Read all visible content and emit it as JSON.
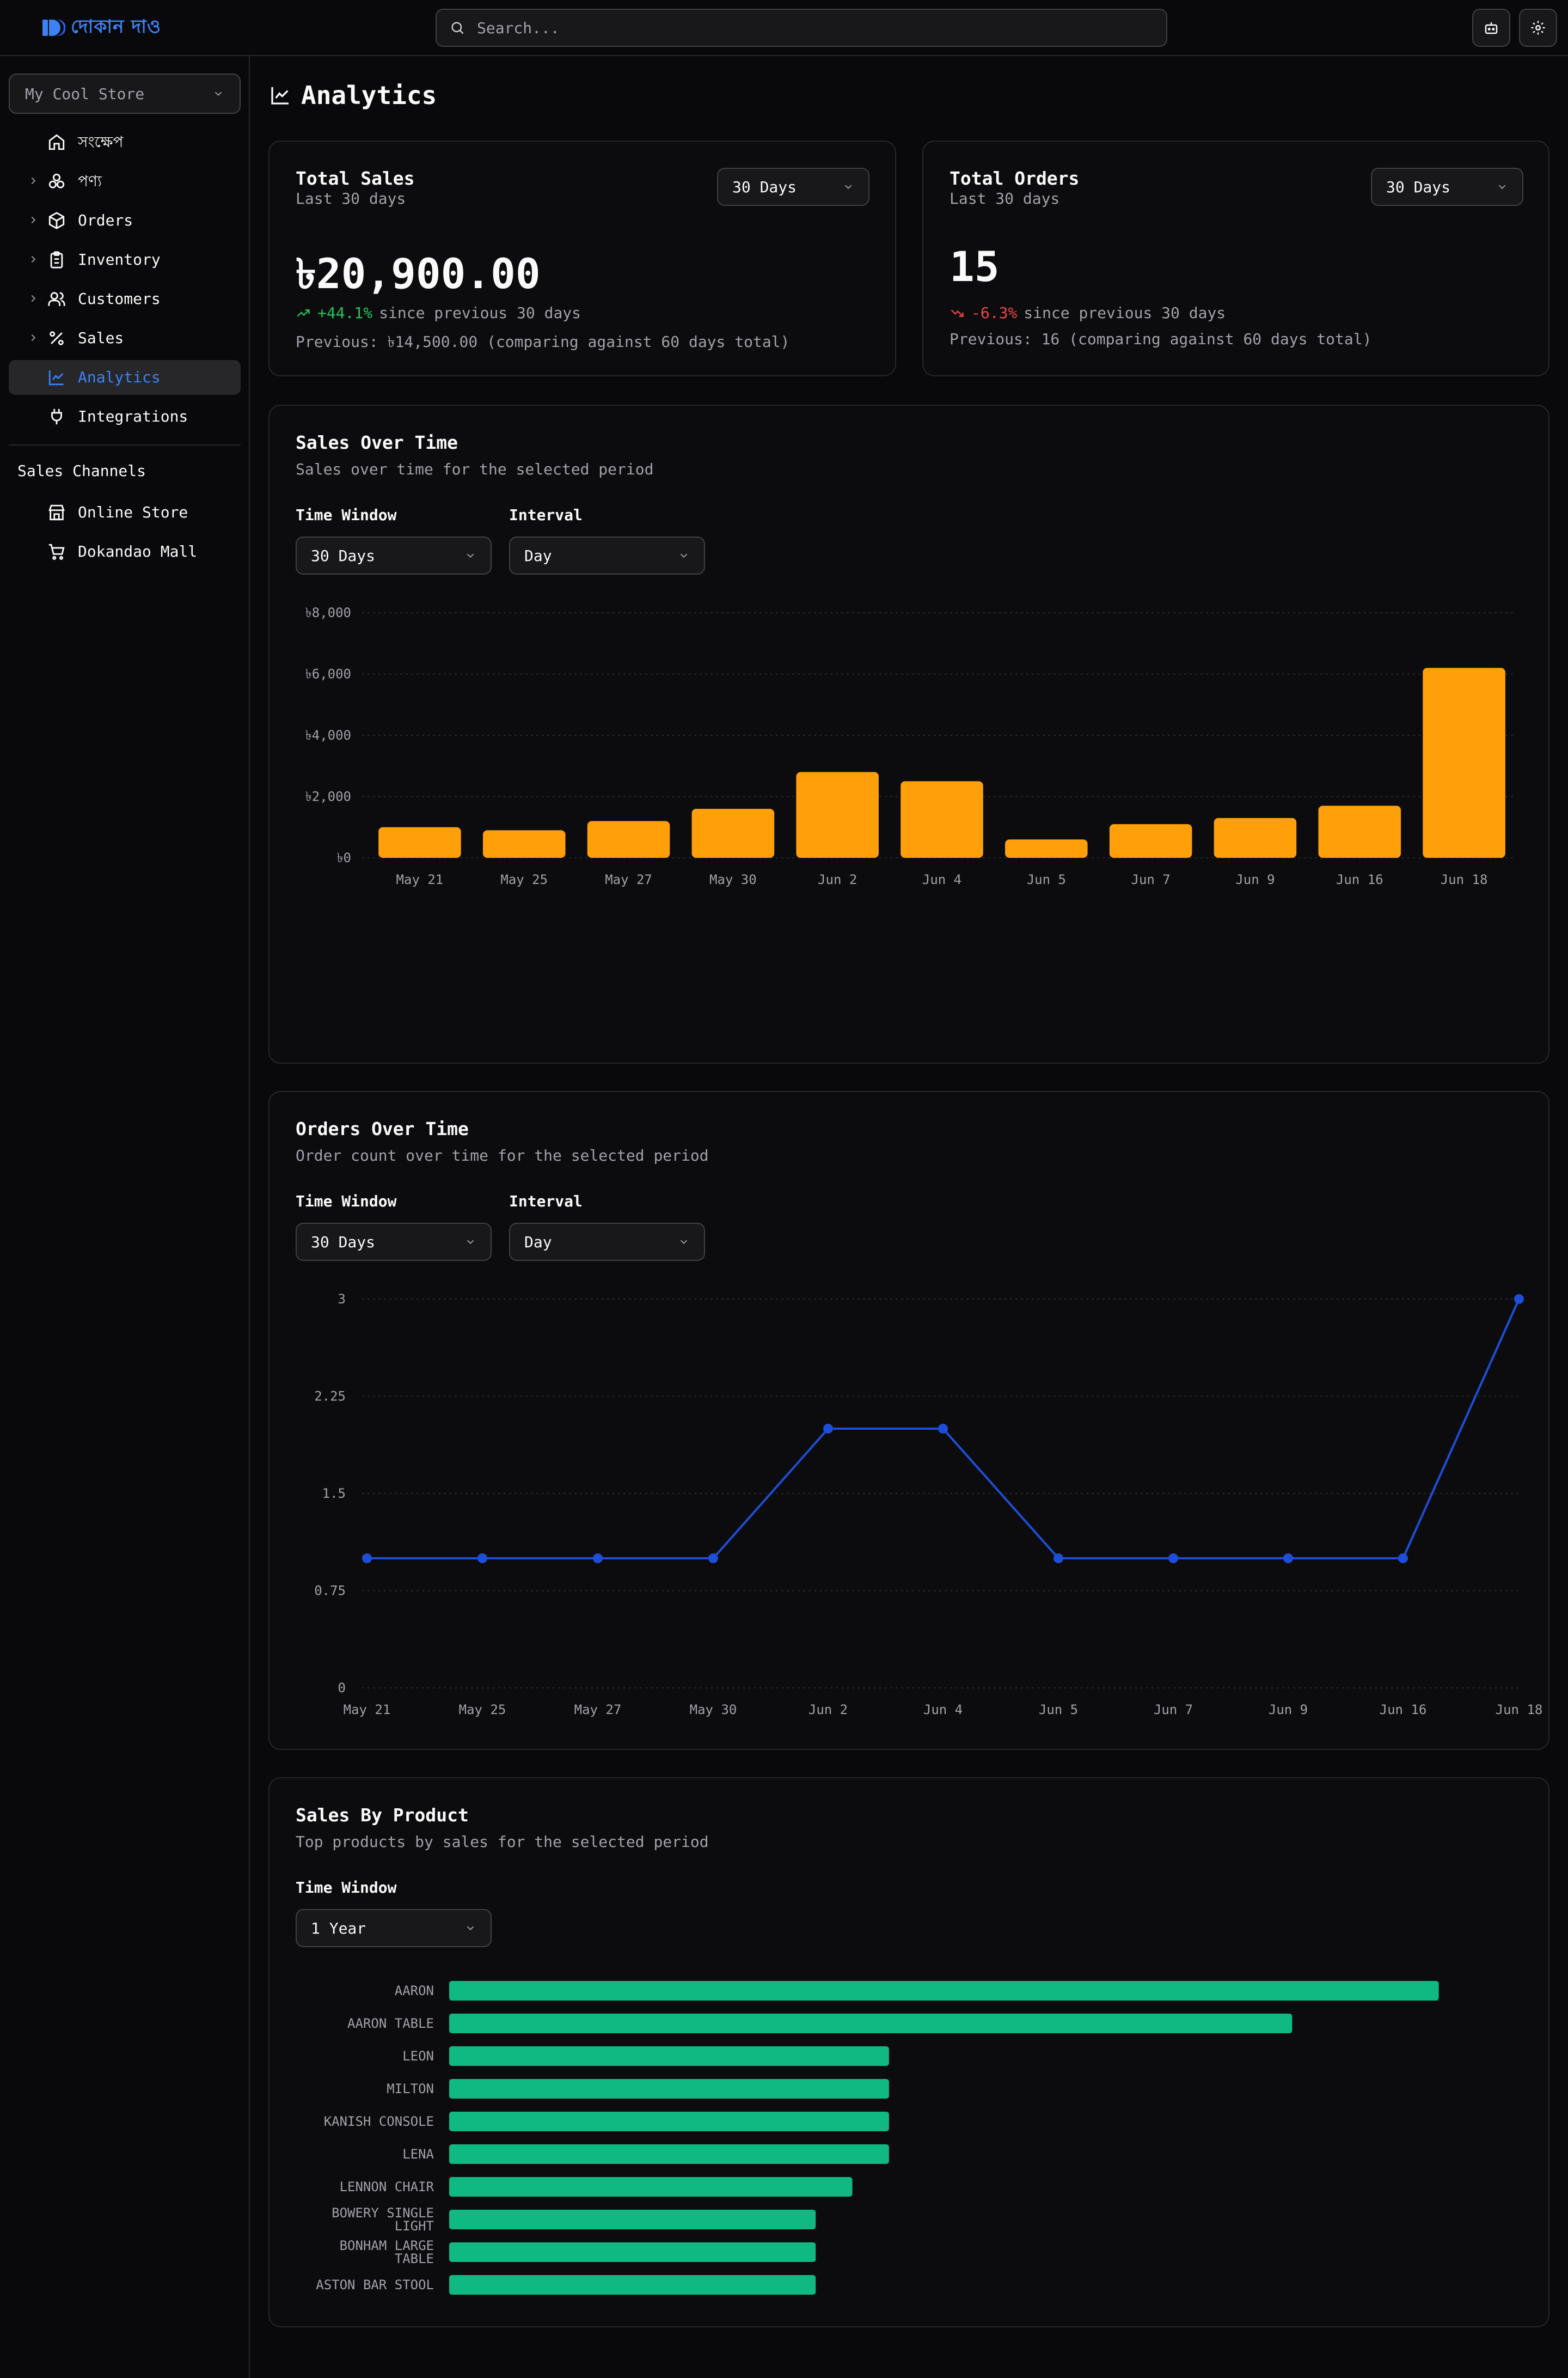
{
  "brand": {
    "name": "দোকান দাও",
    "color": "#3b82f6"
  },
  "search": {
    "placeholder": "Search..."
  },
  "header_icons": [
    "robot-icon",
    "gear-icon"
  ],
  "sidebar": {
    "store": "My Cool Store",
    "items": [
      {
        "label": "সংক্ষেপ",
        "icon": "home-icon",
        "expandable": false,
        "active": false
      },
      {
        "label": "পণ্য",
        "icon": "products-icon",
        "expandable": true,
        "active": false
      },
      {
        "label": "Orders",
        "icon": "box-icon",
        "expandable": true,
        "active": false
      },
      {
        "label": "Inventory",
        "icon": "clipboard-icon",
        "expandable": true,
        "active": false
      },
      {
        "label": "Customers",
        "icon": "users-icon",
        "expandable": true,
        "active": false
      },
      {
        "label": "Sales",
        "icon": "percent-icon",
        "expandable": true,
        "active": false
      },
      {
        "label": "Analytics",
        "icon": "chart-line-icon",
        "expandable": false,
        "active": true
      },
      {
        "label": "Integrations",
        "icon": "plug-icon",
        "expandable": false,
        "active": false
      }
    ],
    "channels_title": "Sales Channels",
    "channels": [
      {
        "label": "Online Store",
        "icon": "store-icon"
      },
      {
        "label": "Dokandao Mall",
        "icon": "cart-icon"
      }
    ]
  },
  "page": {
    "title": "Analytics"
  },
  "total_sales": {
    "title": "Total Sales",
    "subtitle": "Last 30 days",
    "period": "30 Days",
    "value": "৳20,900.00",
    "change": "+44.1%",
    "change_text": "since previous 30 days",
    "previous": "Previous: ৳14,500.00 (comparing against 60 days total)",
    "change_color": "#22c55e"
  },
  "total_orders": {
    "title": "Total Orders",
    "subtitle": "Last 30 days",
    "period": "30 Days",
    "value": "15",
    "change": "-6.3%",
    "change_text": "since previous 30 days",
    "previous": "Previous: 16 (comparing against 60 days total)",
    "change_color": "#ef4444"
  },
  "sales_over_time": {
    "title": "Sales Over Time",
    "subtitle": "Sales over time for the selected period",
    "time_window_label": "Time Window",
    "time_window": "30 Days",
    "interval_label": "Interval",
    "interval": "Day"
  },
  "orders_over_time": {
    "title": "Orders Over Time",
    "subtitle": "Order count over time for the selected period",
    "time_window_label": "Time Window",
    "time_window": "30 Days",
    "interval_label": "Interval",
    "interval": "Day"
  },
  "sales_by_product": {
    "title": "Sales By Product",
    "subtitle": "Top products by sales for the selected period",
    "time_window_label": "Time Window",
    "time_window": "1 Year"
  },
  "chart_data": [
    {
      "type": "bar",
      "color": "#ff9f0a",
      "categories": [
        "May 21",
        "May 25",
        "May 27",
        "May 30",
        "Jun 2",
        "Jun 4",
        "Jun 5",
        "Jun 7",
        "Jun 9",
        "Jun 16",
        "Jun 18"
      ],
      "values": [
        1000,
        900,
        1200,
        1600,
        2800,
        2500,
        600,
        1100,
        1300,
        1700,
        6200
      ],
      "ylim": [
        0,
        8000
      ],
      "yticks": [
        0,
        2000,
        4000,
        6000,
        8000
      ],
      "ytick_labels": [
        "৳0",
        "৳2,000",
        "৳4,000",
        "৳6,000",
        "৳8,000"
      ],
      "grid": true
    },
    {
      "type": "line",
      "color": "#1d4ed8",
      "categories": [
        "May 21",
        "May 25",
        "May 27",
        "May 30",
        "Jun 2",
        "Jun 4",
        "Jun 5",
        "Jun 7",
        "Jun 9",
        "Jun 16",
        "Jun 18"
      ],
      "values": [
        1,
        1,
        1,
        1,
        2,
        2,
        1,
        1,
        1,
        1,
        3
      ],
      "ylim": [
        0,
        3
      ],
      "yticks": [
        0,
        0.75,
        1.5,
        2.25,
        3
      ],
      "ytick_labels": [
        "0",
        "0.75",
        "1.5",
        "2.25",
        "3"
      ],
      "grid": true
    },
    {
      "type": "bar",
      "orientation": "horizontal",
      "color": "#10b981",
      "categories": [
        "AARON",
        "AARON TABLE",
        "LEON",
        "MILTON",
        "KANISH CONSOLE",
        "LENA",
        "LENNON CHAIR",
        "BOWERY SINGLE LIGHT",
        "BONHAM LARGE TABLE",
        "ASTON BAR STOOL"
      ],
      "values": [
        2700,
        2300,
        1200,
        1200,
        1200,
        1200,
        1100,
        1000,
        1000,
        1000
      ],
      "xlim": [
        0,
        2800
      ]
    }
  ]
}
